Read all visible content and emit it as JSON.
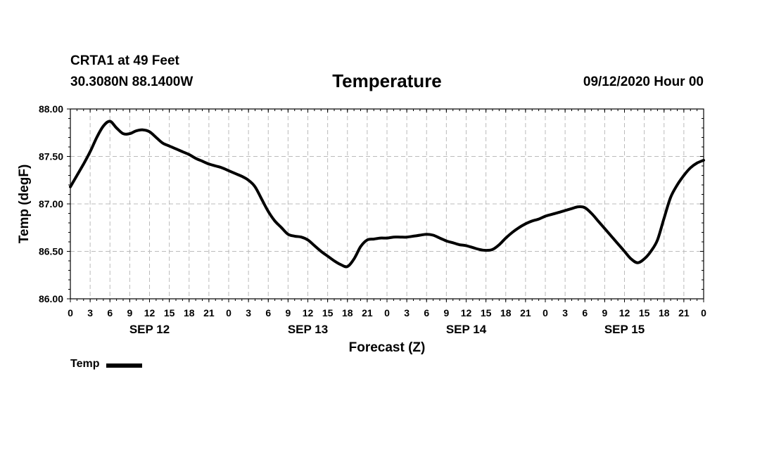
{
  "header": {
    "station": "CRTA1 at 49 Feet",
    "coords": "30.3080N 88.1400W",
    "timestamp": "09/12/2020 Hour 00"
  },
  "chart_data": {
    "type": "line",
    "title": "Temperature",
    "xlabel": "Forecast (Z)",
    "ylabel": "Temp (degF)",
    "ylim": [
      86.0,
      88.0
    ],
    "yticks": [
      "86.00",
      "86.50",
      "87.00",
      "87.50",
      "88.00"
    ],
    "xlim_hours": [
      0,
      96
    ],
    "xtick_labels": [
      "0",
      "3",
      "6",
      "9",
      "12",
      "15",
      "18",
      "21",
      "0",
      "3",
      "6",
      "9",
      "12",
      "15",
      "18",
      "21",
      "0",
      "3",
      "6",
      "9",
      "12",
      "15",
      "18",
      "21",
      "0",
      "3",
      "6",
      "9",
      "12",
      "15",
      "18",
      "21",
      "0"
    ],
    "day_labels": [
      {
        "label": "SEP 12",
        "hour": 12
      },
      {
        "label": "SEP 13",
        "hour": 36
      },
      {
        "label": "SEP 14",
        "hour": 60
      },
      {
        "label": "SEP 15",
        "hour": 84
      }
    ],
    "grid": true,
    "legend": "bottom-left",
    "series": [
      {
        "name": "Temp",
        "color": "#000000",
        "x": [
          0,
          1,
          2,
          3,
          4,
          5,
          6,
          7,
          8,
          9,
          10,
          11,
          12,
          13,
          14,
          15,
          16,
          17,
          18,
          19,
          20,
          21,
          22,
          23,
          24,
          25,
          26,
          27,
          28,
          29,
          30,
          31,
          32,
          33,
          34,
          35,
          36,
          37,
          38,
          39,
          40,
          41,
          42,
          43,
          44,
          45,
          46,
          47,
          48,
          49,
          50,
          51,
          52,
          53,
          54,
          55,
          56,
          57,
          58,
          59,
          60,
          61,
          62,
          63,
          64,
          65,
          66,
          67,
          68,
          69,
          70,
          71,
          72,
          73,
          74,
          75,
          76,
          77,
          78,
          79,
          80,
          81,
          82,
          83,
          84,
          85,
          86,
          87,
          88,
          89,
          90,
          91,
          92,
          93,
          94,
          95,
          96
        ],
        "y": [
          87.18,
          87.3,
          87.42,
          87.55,
          87.7,
          87.82,
          87.87,
          87.8,
          87.74,
          87.74,
          87.77,
          87.78,
          87.76,
          87.7,
          87.64,
          87.61,
          87.58,
          87.55,
          87.52,
          87.48,
          87.45,
          87.42,
          87.4,
          87.38,
          87.35,
          87.32,
          87.29,
          87.25,
          87.18,
          87.05,
          86.92,
          86.82,
          86.75,
          86.68,
          86.66,
          86.65,
          86.62,
          86.56,
          86.5,
          86.45,
          86.4,
          86.36,
          86.34,
          86.42,
          86.55,
          86.62,
          86.63,
          86.64,
          86.64,
          86.65,
          86.65,
          86.65,
          86.66,
          86.67,
          86.68,
          86.67,
          86.64,
          86.61,
          86.59,
          86.57,
          86.56,
          86.54,
          86.52,
          86.51,
          86.52,
          86.57,
          86.64,
          86.7,
          86.75,
          86.79,
          86.82,
          86.84,
          86.87,
          86.89,
          86.91,
          86.93,
          86.95,
          86.97,
          86.96,
          86.9,
          86.82,
          86.74,
          86.66,
          86.58,
          86.5,
          86.42,
          86.38,
          86.42,
          86.5,
          86.62,
          86.85,
          87.07,
          87.2,
          87.3,
          87.38,
          87.43,
          87.46
        ]
      }
    ]
  }
}
